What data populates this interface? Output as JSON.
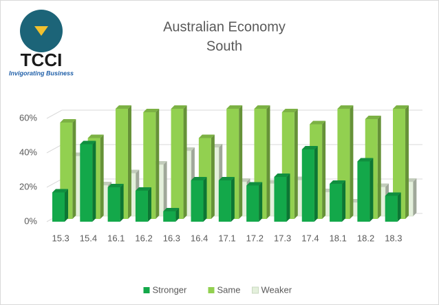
{
  "logo": {
    "name": "TCCI",
    "tagline": "Invigorating Business"
  },
  "chart_data": {
    "type": "bar3d",
    "title": "Australian Economy",
    "subtitle": "South",
    "categories": [
      "15.3",
      "15.4",
      "16.1",
      "16.2",
      "16.3",
      "16.4",
      "17.1",
      "17.2",
      "17.3",
      "17.4",
      "18.1",
      "18.2",
      "18.3"
    ],
    "series": [
      {
        "name": "Stronger",
        "color": "#13a84a",
        "values": [
          17,
          45,
          20,
          18,
          6,
          24,
          24,
          21,
          26,
          42,
          22,
          35,
          15
        ]
      },
      {
        "name": "Same",
        "color": "#92d050",
        "values": [
          56,
          47,
          64,
          62,
          64,
          47,
          64,
          64,
          62,
          55,
          64,
          58,
          64
        ]
      },
      {
        "name": "Weaker",
        "color": "#e4f0dc",
        "values": [
          35,
          18,
          25,
          30,
          38,
          40,
          20,
          19,
          21,
          14,
          8,
          17,
          20
        ]
      }
    ],
    "ylim": [
      0,
      70
    ],
    "yticks": [
      {
        "value": 0,
        "label": "0%"
      },
      {
        "value": 20,
        "label": "20%"
      },
      {
        "value": 40,
        "label": "40%"
      },
      {
        "value": 60,
        "label": "60%"
      }
    ],
    "grid": true,
    "legend": "bottom"
  }
}
